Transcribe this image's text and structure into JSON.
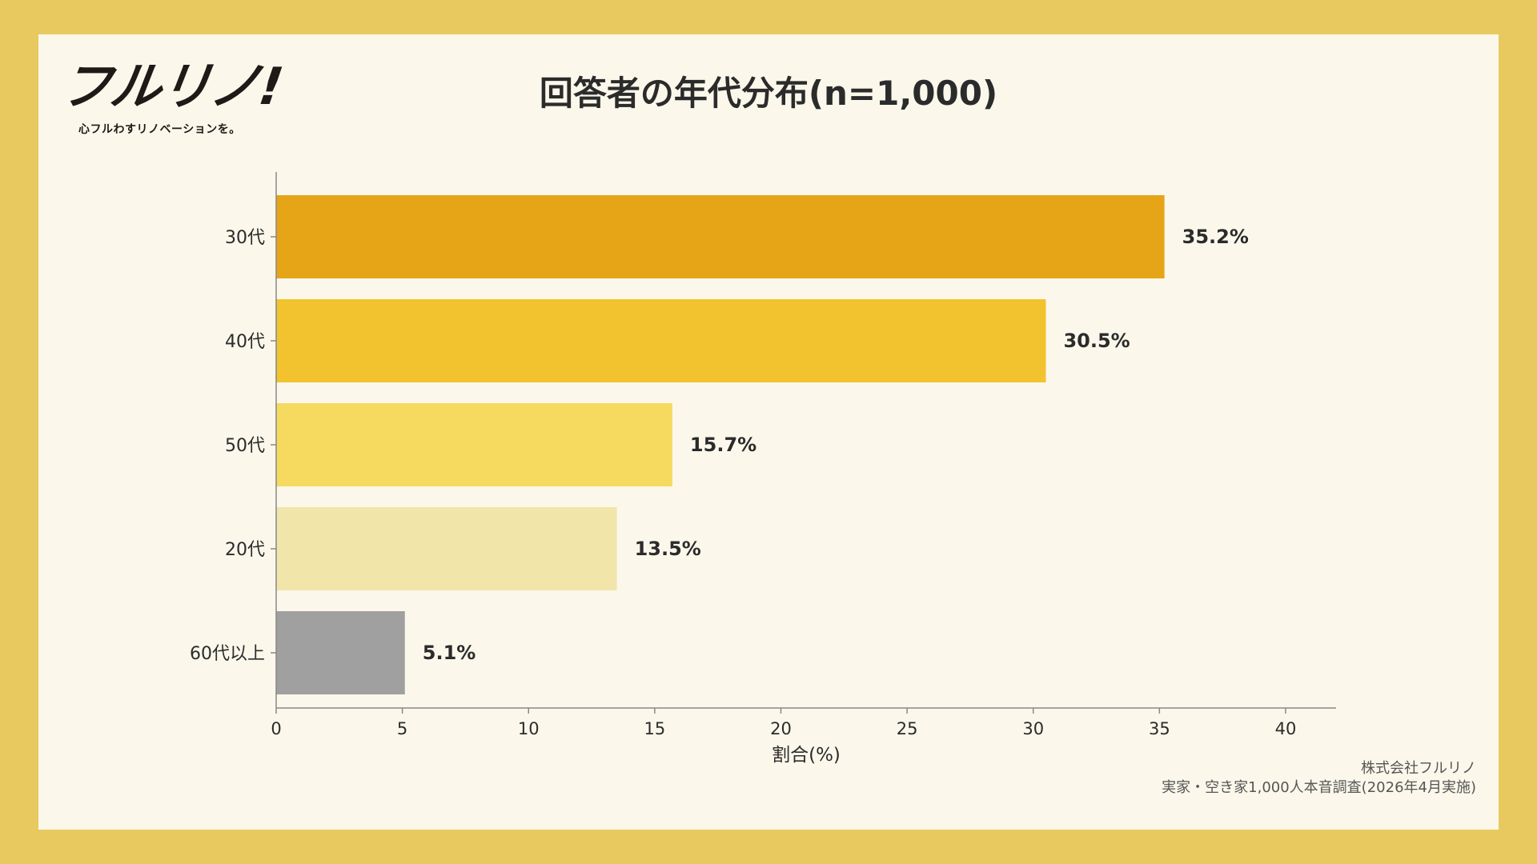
{
  "brand": {
    "logo_text": "フルリノ!",
    "tagline": "心フルわすリノベーションを。"
  },
  "colors": {
    "frame": "#E8C960",
    "panel": "#FBF8EB",
    "axis": "#888888",
    "text": "#2B2B2B"
  },
  "chart_data": {
    "type": "bar",
    "orientation": "horizontal",
    "title": "回答者の年代分布(n=1,000)",
    "xlabel": "割合(%)",
    "ylabel": "",
    "categories": [
      "30代",
      "40代",
      "50代",
      "20代",
      "60代以上"
    ],
    "values": [
      35.2,
      30.5,
      15.7,
      13.5,
      5.1
    ],
    "data_labels": [
      "35.2%",
      "30.5%",
      "15.7%",
      "13.5%",
      "5.1%"
    ],
    "bar_colors": [
      "#E6A417",
      "#F2C32E",
      "#F5DA5F",
      "#F1E5AA",
      "#A0A0A0"
    ],
    "xlim": [
      0,
      42
    ],
    "xticks": [
      0,
      5,
      10,
      15,
      20,
      25,
      30,
      35,
      40
    ],
    "grid": false,
    "legend": "none"
  },
  "credit": {
    "line1": "株式会社フルリノ",
    "line2": "実家・空き家1,000人本音調査(2026年4月実施)"
  }
}
